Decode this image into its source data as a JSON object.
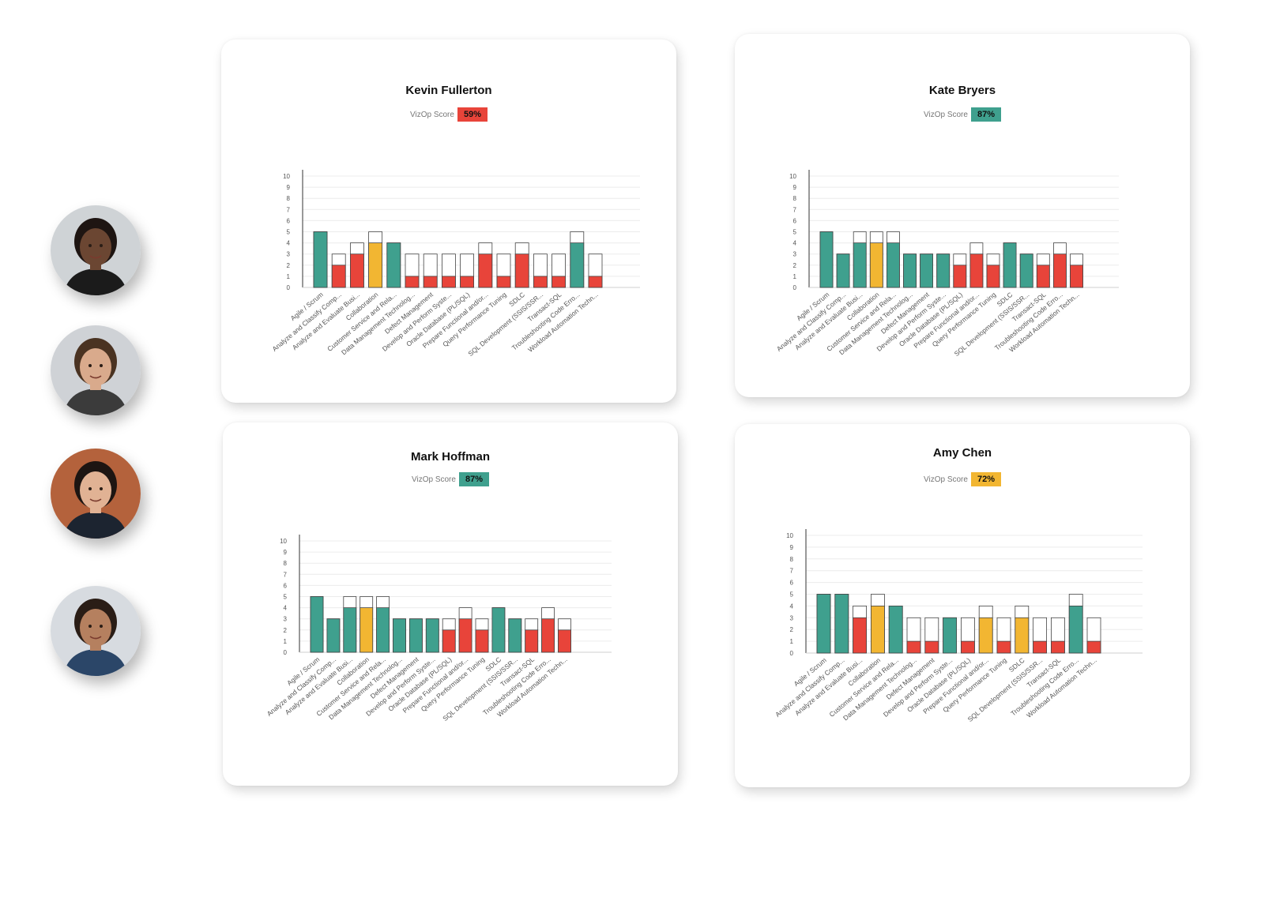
{
  "colors": {
    "green": "#3fa08e",
    "red": "#e8443a",
    "yellow": "#f2b632",
    "shadow_bar": "#ffffff",
    "axis": "#333333",
    "grid": "#ececec"
  },
  "avatars": [
    {
      "name": "avatar-woman-braids",
      "skin": "#6b4632",
      "hair": "#1e1512",
      "bg": "#cfd3d6",
      "shirt": "#1b1b1b"
    },
    {
      "name": "avatar-man-glasses",
      "skin": "#d9aa8c",
      "hair": "#4a3322",
      "bg": "#cfd2d6",
      "shirt": "#3b3b3b"
    },
    {
      "name": "avatar-woman-dark-hair",
      "skin": "#e1b294",
      "hair": "#1d1512",
      "bg": "#b4623c",
      "shirt": "#1c2430"
    },
    {
      "name": "avatar-man-denim",
      "skin": "#b5805f",
      "hair": "#2a1d16",
      "bg": "#d7dbe0",
      "shirt": "#2b4668"
    }
  ],
  "score_label": "VizOp Score",
  "cards": [
    {
      "name": "Kevin Fullerton",
      "score": "59%",
      "score_color": "#e8443a",
      "chart_data": {
        "type": "bar",
        "categories": [
          "Agile / Scrum",
          "Analyze and Classify Comp...",
          "Analyze and Evaluate Busi...",
          "Collaboration",
          "Customer Service and Rela...",
          "Data Management Technolog...",
          "Defect Management",
          "Develop and Perform Syste...",
          "Oracle Database (PL/SQL)",
          "Prepare Functional and/or...",
          "Query Performance Tuning",
          "SDLC",
          "SQL Development (SSIS/SSR...",
          "Transact-SQL",
          "Troubleshooting Code Erro...",
          "Workload Automation Techn..."
        ],
        "series": [
          {
            "values": [
              5,
              2,
              3,
              4,
              4,
              1,
              1,
              1,
              1,
              3,
              1,
              3,
              1,
              1,
              4,
              1
            ]
          },
          {
            "values": [
              5,
              3,
              4,
              5,
              4,
              3,
              3,
              3,
              3,
              4,
              3,
              4,
              3,
              3,
              5,
              3
            ]
          }
        ],
        "bar_colors": [
          "green",
          "red",
          "red",
          "yellow",
          "green",
          "red",
          "red",
          "red",
          "red",
          "red",
          "red",
          "red",
          "red",
          "red",
          "green",
          "red"
        ],
        "y_ticks": [
          "0",
          "1",
          "2",
          "3",
          "4",
          "5",
          "6",
          "7",
          "8",
          "9",
          "10"
        ],
        "ylim": [
          0,
          10
        ]
      }
    },
    {
      "name": "Kate Bryers",
      "score": "87%",
      "score_color": "#3fa08e",
      "chart_data": {
        "type": "bar",
        "categories": [
          "Agile / Scrum",
          "Analyze and Classify Comp...",
          "Analyze and Evaluate Busi...",
          "Collaboration",
          "Customer Service and Rela...",
          "Data Management Technolog...",
          "Defect Management",
          "Develop and Perform Syste...",
          "Oracle Database (PL/SQL)",
          "Prepare Functional and/or...",
          "Query Performance Tuning",
          "SDLC",
          "SQL Development (SSIS/SSR...",
          "Transact-SQL",
          "Troubleshooting Code Erro...",
          "Workload Automation Techn..."
        ],
        "series": [
          {
            "values": [
              5,
              3,
              4,
              4,
              4,
              3,
              3,
              3,
              2,
              3,
              2,
              4,
              3,
              2,
              3,
              2
            ]
          },
          {
            "values": [
              5,
              3,
              5,
              5,
              5,
              3,
              3,
              3,
              3,
              4,
              3,
              4,
              3,
              3,
              4,
              3
            ]
          }
        ],
        "bar_colors": [
          "green",
          "green",
          "green",
          "yellow",
          "green",
          "green",
          "green",
          "green",
          "red",
          "red",
          "red",
          "green",
          "green",
          "red",
          "red",
          "red"
        ],
        "y_ticks": [
          "0",
          "1",
          "2",
          "3",
          "4",
          "5",
          "6",
          "7",
          "8",
          "9",
          "10"
        ],
        "ylim": [
          0,
          10
        ]
      }
    },
    {
      "name": "Mark Hoffman",
      "score": "87%",
      "score_color": "#3fa08e",
      "chart_data": {
        "type": "bar",
        "categories": [
          "Agile / Scrum",
          "Analyze and Classify Comp...",
          "Analyze and Evaluate Busi...",
          "Collaboration",
          "Customer Service and Rela...",
          "Data Management Technolog...",
          "Defect Management",
          "Develop and Perform Syste...",
          "Oracle Database (PL/SQL)",
          "Prepare Functional and/or...",
          "Query Performance Tuning",
          "SDLC",
          "SQL Development (SSIS/SSR...",
          "Transact-SQL",
          "Troubleshooting Code Erro...",
          "Workload Automation Techn..."
        ],
        "series": [
          {
            "values": [
              5,
              3,
              4,
              4,
              4,
              3,
              3,
              3,
              2,
              3,
              2,
              4,
              3,
              2,
              3,
              2
            ]
          },
          {
            "values": [
              5,
              3,
              5,
              5,
              5,
              3,
              3,
              3,
              3,
              4,
              3,
              4,
              3,
              3,
              4,
              3
            ]
          }
        ],
        "bar_colors": [
          "green",
          "green",
          "green",
          "yellow",
          "green",
          "green",
          "green",
          "green",
          "red",
          "red",
          "red",
          "green",
          "green",
          "red",
          "red",
          "red"
        ],
        "y_ticks": [
          "0",
          "1",
          "2",
          "3",
          "4",
          "5",
          "6",
          "7",
          "8",
          "9",
          "10"
        ],
        "ylim": [
          0,
          10
        ]
      }
    },
    {
      "name": "Amy Chen",
      "score": "72%",
      "score_color": "#f2b632",
      "chart_data": {
        "type": "bar",
        "categories": [
          "Agile / Scrum",
          "Analyze and Classify Comp...",
          "Analyze and Evaluate Busi...",
          "Collaboration",
          "Customer Service and Rela...",
          "Data Management Technolog...",
          "Defect Management",
          "Develop and Perform Syste...",
          "Oracle Database (PL/SQL)",
          "Prepare Functional and/or...",
          "Query Performance Tuning",
          "SDLC",
          "SQL Development (SSIS/SSR...",
          "Transact-SQL",
          "Troubleshooting Code Erro...",
          "Workload Automation Techn..."
        ],
        "series": [
          {
            "values": [
              5,
              5,
              3,
              4,
              4,
              1,
              1,
              3,
              1,
              3,
              1,
              3,
              1,
              1,
              4,
              1
            ]
          },
          {
            "values": [
              5,
              5,
              4,
              5,
              4,
              3,
              3,
              3,
              3,
              4,
              3,
              4,
              3,
              3,
              5,
              3
            ]
          }
        ],
        "bar_colors": [
          "green",
          "green",
          "red",
          "yellow",
          "green",
          "red",
          "red",
          "green",
          "red",
          "yellow",
          "red",
          "yellow",
          "red",
          "red",
          "green",
          "red"
        ],
        "y_ticks": [
          "0",
          "1",
          "2",
          "3",
          "4",
          "5",
          "6",
          "7",
          "8",
          "9",
          "10"
        ],
        "ylim": [
          0,
          10
        ]
      }
    }
  ]
}
